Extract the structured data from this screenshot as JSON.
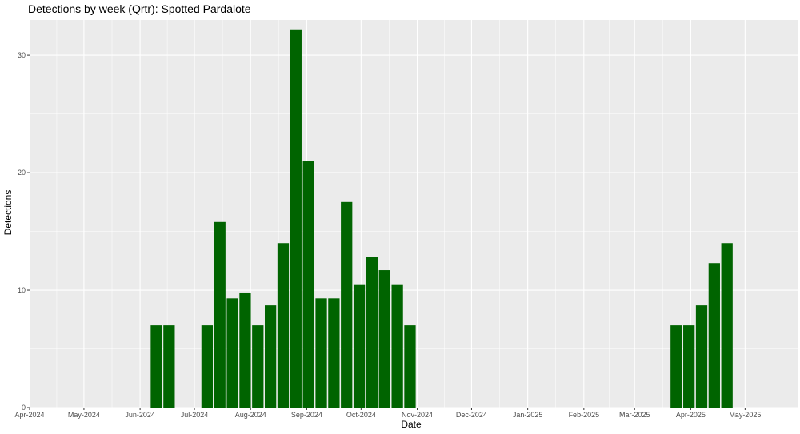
{
  "chart_data": {
    "type": "bar",
    "title": "Detections by week (Qrtr): Spotted Pardalote",
    "xlabel": "Date",
    "ylabel": "Detections",
    "ylim": [
      0,
      33
    ],
    "yticks": [
      0,
      10,
      20,
      30
    ],
    "xlim": [
      "2024-04-01",
      "2025-05-30"
    ],
    "xticks": [
      {
        "label": "Apr-2024",
        "date": "2024-04-01"
      },
      {
        "label": "May-2024",
        "date": "2024-05-01"
      },
      {
        "label": "Jun-2024",
        "date": "2024-06-01"
      },
      {
        "label": "Jul-2024",
        "date": "2024-07-01"
      },
      {
        "label": "Aug-2024",
        "date": "2024-08-01"
      },
      {
        "label": "Sep-2024",
        "date": "2024-09-01"
      },
      {
        "label": "Oct-2024",
        "date": "2024-10-01"
      },
      {
        "label": "Nov-2024",
        "date": "2024-11-01"
      },
      {
        "label": "Dec-2024",
        "date": "2024-12-01"
      },
      {
        "label": "Jan-2025",
        "date": "2025-01-01"
      },
      {
        "label": "Feb-2025",
        "date": "2025-02-01"
      },
      {
        "label": "Mar-2025",
        "date": "2025-03-01"
      },
      {
        "label": "Apr-2025",
        "date": "2025-04-01"
      },
      {
        "label": "May-2025",
        "date": "2025-05-01"
      }
    ],
    "grid": true,
    "bar_color": "#006400",
    "panel_background": "#ebebeb",
    "grid_color": "#ffffff",
    "x": [
      "2024-06-10",
      "2024-06-17",
      "2024-07-08",
      "2024-07-15",
      "2024-07-22",
      "2024-07-29",
      "2024-08-05",
      "2024-08-12",
      "2024-08-19",
      "2024-08-26",
      "2024-09-02",
      "2024-09-09",
      "2024-09-16",
      "2024-09-23",
      "2024-09-30",
      "2024-10-07",
      "2024-10-14",
      "2024-10-21",
      "2024-10-28",
      "2025-03-24",
      "2025-03-31",
      "2025-04-07",
      "2025-04-14",
      "2025-04-21"
    ],
    "values": [
      7,
      7,
      7,
      15.8,
      9.3,
      9.8,
      7,
      8.7,
      14,
      32.2,
      21,
      9.3,
      9.3,
      17.5,
      10.5,
      12.8,
      11.7,
      10.5,
      7,
      7,
      7,
      8.7,
      12.3,
      14
    ]
  }
}
